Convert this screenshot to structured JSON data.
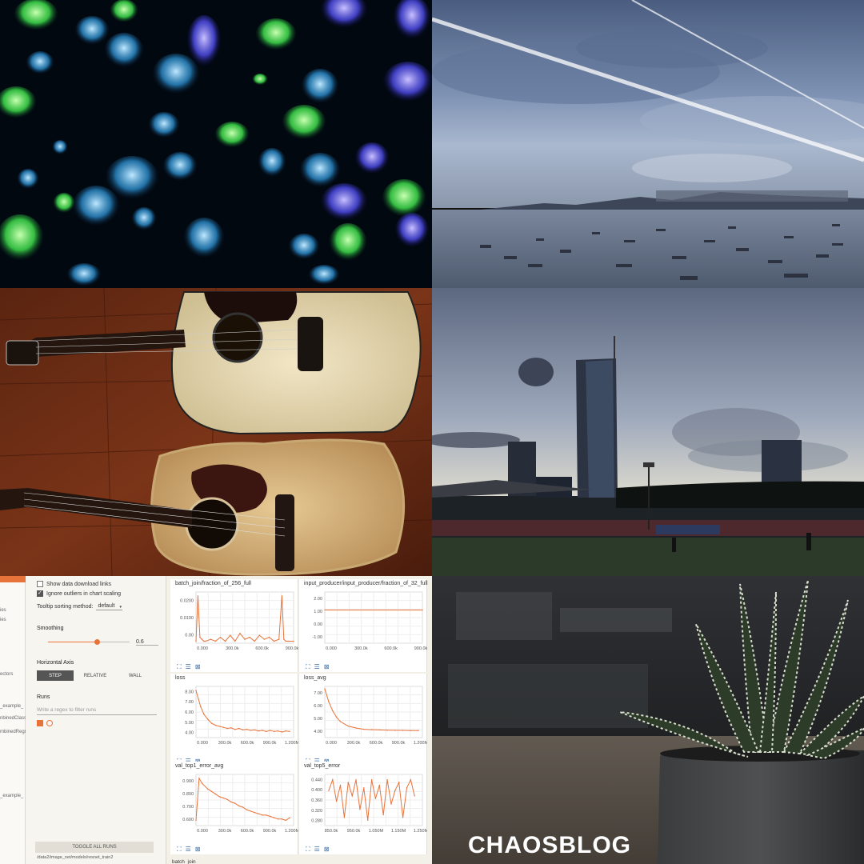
{
  "photos": [
    {
      "id": "jellyfish",
      "name": "jellyfish-photo"
    },
    {
      "id": "seascape",
      "name": "seascape-photo"
    },
    {
      "id": "guitars",
      "name": "guitars-photo"
    },
    {
      "id": "skyline",
      "name": "skyline-photo"
    },
    {
      "id": "tensorboard",
      "name": "tensorboard-photo"
    },
    {
      "id": "succulent",
      "name": "succulent-photo"
    }
  ],
  "tensorboard": {
    "left_fragments": [
      "ies",
      "ies",
      "ectors",
      "_example_",
      "nbinedClass",
      "mbinedRegre",
      "_example_"
    ],
    "show_download": "Show data download links",
    "ignore_outliers": "Ignore outliers in chart scaling",
    "tooltip_label": "Tooltip sorting method:",
    "tooltip_value": "default",
    "smoothing_label": "Smoothing",
    "smoothing_value": "0.6",
    "smoothing_fraction": 0.6,
    "axis_label": "Horizontal Axis",
    "axis_options": [
      "STEP",
      "RELATIVE",
      "WALL"
    ],
    "runs_label": "Runs",
    "runs_placeholder": "Write a regex to filter runs",
    "toggle_label": "TOGGLE ALL RUNS",
    "path": "/data2/image_net/models/resnet_train2",
    "bottom_title": "batch_join",
    "accent": "#e8733a"
  },
  "chart_data": [
    {
      "type": "line",
      "title": "batch_join/fraction_of_256_full",
      "xticks": [
        "0.000",
        "300.0k",
        "600.0k",
        "900.0k"
      ],
      "yticks": [
        "0.00",
        "0.0100",
        "0.0200"
      ],
      "xlim": [
        0,
        1000000
      ],
      "ylim": [
        0,
        0.026
      ],
      "series": [
        {
          "x": [
            0,
            20000,
            40000,
            60000,
            80000,
            100000,
            150000,
            200000,
            250000,
            300000,
            350000,
            400000,
            450000,
            500000,
            550000,
            600000,
            650000,
            700000,
            750000,
            800000,
            850000,
            880000,
            900000,
            920000,
            950000,
            1000000
          ],
          "values": [
            0.001,
            0.024,
            0.003,
            0.002,
            0.001,
            0.001,
            0.002,
            0.001,
            0.003,
            0.001,
            0.004,
            0.001,
            0.005,
            0.002,
            0.003,
            0.001,
            0.004,
            0.002,
            0.003,
            0.001,
            0.002,
            0.024,
            0.002,
            0.001,
            0.001,
            0.001
          ]
        }
      ]
    },
    {
      "type": "line",
      "title": "input_producer/input_producer/fraction_of_32_full",
      "xticks": [
        "0.000",
        "300.0k",
        "600.0k",
        "900.0k"
      ],
      "yticks": [
        "-1.00",
        "0.00",
        "1.00",
        "2.00"
      ],
      "xlim": [
        0,
        1000000
      ],
      "ylim": [
        -1.4,
        2.3
      ],
      "series": [
        {
          "x": [
            0,
            1000000
          ],
          "values": [
            1.0,
            1.0
          ]
        }
      ]
    },
    {
      "type": "line",
      "title": "loss",
      "xticks": [
        "0.000",
        "300.0k",
        "600.0k",
        "900.0k",
        "1.200M"
      ],
      "yticks": [
        "4.00",
        "5.00",
        "6.00",
        "7.00",
        "8.00"
      ],
      "xlim": [
        0,
        1250000
      ],
      "ylim": [
        3.8,
        8.8
      ],
      "series": [
        {
          "x": [
            0,
            30000,
            60000,
            100000,
            150000,
            200000,
            250000,
            300000,
            350000,
            400000,
            450000,
            500000,
            550000,
            600000,
            650000,
            700000,
            750000,
            800000,
            850000,
            900000,
            950000,
            1000000,
            1050000,
            1100000,
            1150000,
            1200000
          ],
          "values": [
            8.4,
            7.6,
            6.8,
            6.1,
            5.6,
            5.2,
            5.0,
            4.9,
            4.8,
            4.7,
            4.75,
            4.6,
            4.7,
            4.55,
            4.6,
            4.5,
            4.55,
            4.45,
            4.5,
            4.4,
            4.5,
            4.4,
            4.45,
            4.35,
            4.45,
            4.4
          ]
        }
      ]
    },
    {
      "type": "line",
      "title": "loss_avg",
      "xticks": [
        "0.000",
        "300.0k",
        "600.0k",
        "900.0k",
        "1.200M"
      ],
      "yticks": [
        "4.00",
        "5.00",
        "6.00",
        "7.00"
      ],
      "xlim": [
        0,
        1250000
      ],
      "ylim": [
        3.8,
        7.8
      ],
      "series": [
        {
          "x": [
            0,
            50000,
            100000,
            150000,
            200000,
            300000,
            400000,
            500000,
            600000,
            700000,
            800000,
            900000,
            1000000,
            1100000,
            1200000
          ],
          "values": [
            7.6,
            6.6,
            5.9,
            5.4,
            5.05,
            4.7,
            4.55,
            4.45,
            4.42,
            4.4,
            4.38,
            4.37,
            4.36,
            4.35,
            4.35
          ]
        }
      ]
    },
    {
      "type": "line",
      "title": "val_top1_error_avg",
      "xticks": [
        "0.000",
        "300.0k",
        "600.0k",
        "900.0k",
        "1.200M"
      ],
      "yticks": [
        "0.600",
        "0.700",
        "0.800",
        "0.900"
      ],
      "xlim": [
        0,
        1250000
      ],
      "ylim": [
        0.58,
        0.97
      ],
      "series": [
        {
          "x": [
            0,
            40000,
            80000,
            150000,
            200000,
            250000,
            300000,
            350000,
            400000,
            450000,
            500000,
            550000,
            600000,
            650000,
            700000,
            750000,
            800000,
            850000,
            900000,
            950000,
            1000000,
            1050000,
            1100000,
            1150000,
            1200000
          ],
          "values": [
            0.62,
            0.94,
            0.9,
            0.86,
            0.84,
            0.82,
            0.8,
            0.79,
            0.78,
            0.76,
            0.75,
            0.73,
            0.72,
            0.7,
            0.69,
            0.68,
            0.67,
            0.66,
            0.66,
            0.65,
            0.64,
            0.63,
            0.63,
            0.62,
            0.64
          ]
        }
      ]
    },
    {
      "type": "line",
      "title": "val_top5_error",
      "xticks": [
        "850.0k",
        "950.0k",
        "1.050M",
        "1.150M",
        "1.250M"
      ],
      "yticks": [
        "0.280",
        "0.320",
        "0.360",
        "0.400",
        "0.440"
      ],
      "xlim": [
        800000,
        1300000
      ],
      "ylim": [
        0.27,
        0.46
      ],
      "series": [
        {
          "x": [
            820000,
            840000,
            860000,
            880000,
            900000,
            920000,
            940000,
            960000,
            980000,
            1000000,
            1020000,
            1040000,
            1060000,
            1080000,
            1100000,
            1120000,
            1140000,
            1160000,
            1180000,
            1200000,
            1220000,
            1240000,
            1260000
          ],
          "values": [
            0.4,
            0.44,
            0.36,
            0.42,
            0.3,
            0.43,
            0.38,
            0.44,
            0.33,
            0.41,
            0.29,
            0.44,
            0.37,
            0.42,
            0.31,
            0.44,
            0.35,
            0.4,
            0.43,
            0.3,
            0.41,
            0.44,
            0.38
          ]
        }
      ]
    }
  ],
  "watermark": {
    "text": "CHAOSBLOG"
  }
}
